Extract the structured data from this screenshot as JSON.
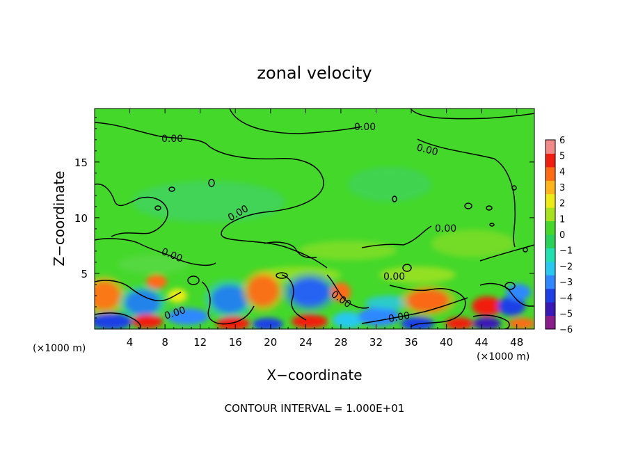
{
  "chart_data": {
    "type": "heatmap",
    "title": "zonal velocity",
    "xlabel": "X−coordinate",
    "ylabel": "Z−coordinate",
    "x_unit_left": "(×1000 m)",
    "x_unit_right": "(×1000 m)",
    "footer": "CONTOUR INTERVAL = 1.000E+01",
    "xlim": [
      0,
      50
    ],
    "ylim": [
      0,
      19.8
    ],
    "xticks": [
      "4",
      "8",
      "12",
      "16",
      "20",
      "24",
      "28",
      "32",
      "36",
      "40",
      "44",
      "48"
    ],
    "yticks": [
      "5",
      "10",
      "15"
    ],
    "colorbar": {
      "ticks": [
        "6",
        "5",
        "4",
        "3",
        "2",
        "1",
        "0",
        "−1",
        "−2",
        "−3",
        "−4",
        "−5",
        "−6"
      ],
      "colors": [
        "#8a1d8a",
        "#3a18b8",
        "#1f3fe6",
        "#2f88ff",
        "#28c8f0",
        "#22e0b0",
        "#28d25a",
        "#44d82a",
        "#a8e21e",
        "#ecec14",
        "#ffb41a",
        "#ff6a12",
        "#f21f10",
        "#f28a8a"
      ]
    },
    "contour_labels": [
      "0.00",
      "0.00",
      "0.00",
      "0.00",
      "0.00",
      "0.00",
      "0.00",
      "0.00",
      "0.00",
      "0.00"
    ]
  }
}
